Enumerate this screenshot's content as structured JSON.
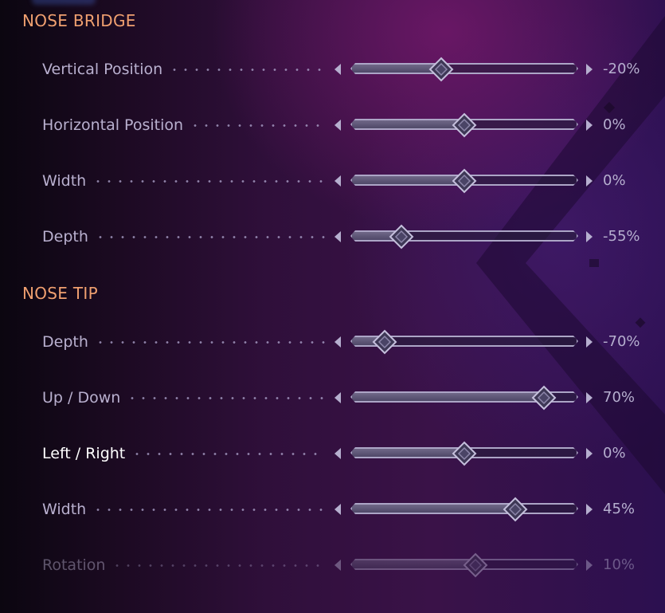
{
  "sections": [
    {
      "title": "NOSE BRIDGE",
      "sliders": [
        {
          "label": "Vertical Position",
          "value_text": "-20%",
          "value": -20
        },
        {
          "label": "Horizontal Position",
          "value_text": "0%",
          "value": 0
        },
        {
          "label": "Width",
          "value_text": "0%",
          "value": 0
        },
        {
          "label": "Depth",
          "value_text": "-55%",
          "value": -55
        }
      ]
    },
    {
      "title": "NOSE TIP",
      "sliders": [
        {
          "label": "Depth",
          "value_text": "-70%",
          "value": -70
        },
        {
          "label": "Up / Down",
          "value_text": "70%",
          "value": 70
        },
        {
          "label": "Left / Right",
          "value_text": "0%",
          "value": 0,
          "state": "focused"
        },
        {
          "label": "Width",
          "value_text": "45%",
          "value": 45
        },
        {
          "label": "Rotation",
          "value_text": "10%",
          "value": 10,
          "state": "dimmed"
        }
      ]
    }
  ],
  "slider_range": [
    -100,
    100
  ],
  "colors": {
    "section_title": "#f0a070",
    "label": "#b9b0cf",
    "label_focused": "#ffffff",
    "track_border": "#aca5c6",
    "track_fill": "#5d5678",
    "value": "#b6afcf"
  },
  "icons": {
    "decrease": "left-triangle-icon",
    "increase": "right-triangle-icon",
    "thumb": "diamond-icon"
  }
}
